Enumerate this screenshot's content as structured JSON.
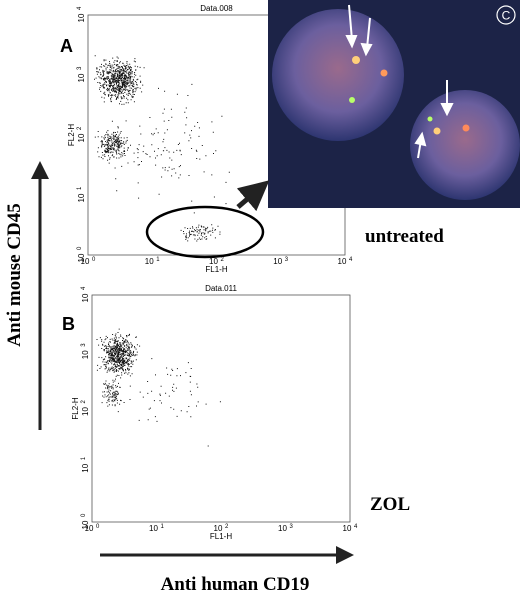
{
  "panels": [
    {
      "label": "A",
      "title": "Data.008",
      "y_axis": "FL2-H",
      "x_axis": "FL1-H",
      "condition": "untreated"
    },
    {
      "label": "B",
      "title": "Data.011",
      "y_axis": "FL2-H",
      "x_axis": "FL1-H",
      "condition": "ZOL"
    }
  ],
  "ticks": [
    {
      "base": "10",
      "exp": "0"
    },
    {
      "base": "10",
      "exp": "1"
    },
    {
      "base": "10",
      "exp": "2"
    },
    {
      "base": "10",
      "exp": "3"
    },
    {
      "base": "10",
      "exp": "4"
    }
  ],
  "inset": {
    "label": "C"
  },
  "axis_labels": {
    "y": "Anti mouse CD45",
    "x": "Anti human CD19"
  }
}
